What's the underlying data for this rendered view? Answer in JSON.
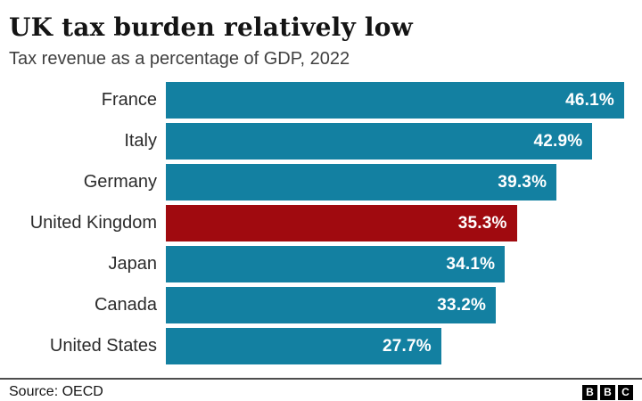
{
  "header": {
    "title": "UK tax burden relatively low",
    "subtitle": "Tax revenue as a percentage of GDP, 2022"
  },
  "chart_data": {
    "type": "bar",
    "orientation": "horizontal",
    "title": "UK tax burden relatively low",
    "subtitle": "Tax revenue as a percentage of GDP, 2022",
    "categories": [
      "France",
      "Italy",
      "Germany",
      "United Kingdom",
      "Japan",
      "Canada",
      "United States"
    ],
    "values": [
      46.1,
      42.9,
      39.3,
      35.3,
      34.1,
      33.2,
      27.7
    ],
    "value_labels": [
      "46.1%",
      "42.9%",
      "39.3%",
      "35.3%",
      "34.1%",
      "33.2%",
      "27.7%"
    ],
    "xlim": [
      0,
      46.1
    ],
    "grid": false,
    "legend": false,
    "highlight_category": "United Kingdom",
    "colors": {
      "bar": "#1380A1",
      "highlight": "#A00A0F",
      "value_label": "#FFFFFF",
      "category_label": "#2B2B2B"
    }
  },
  "footer": {
    "source": "Source: OECD",
    "logo_letters": [
      "B",
      "B",
      "C"
    ]
  }
}
